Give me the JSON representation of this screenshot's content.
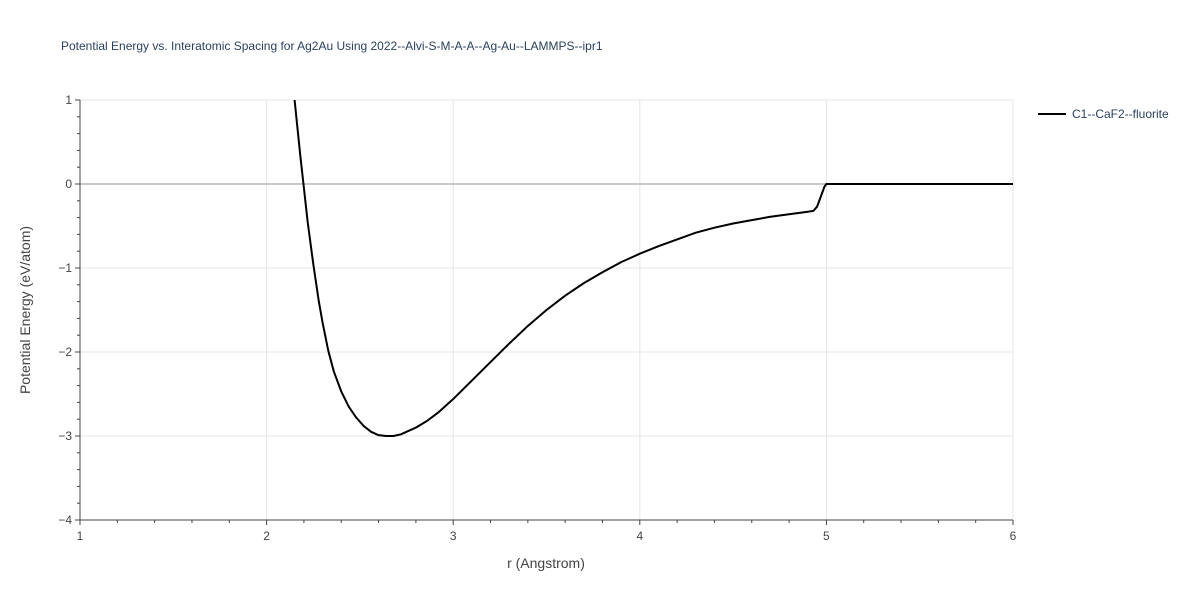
{
  "chart_data": {
    "type": "line",
    "title": "Potential Energy vs. Interatomic Spacing for Ag2Au Using 2022--Alvi-S-M-A-A--Ag-Au--LAMMPS--ipr1",
    "xlabel": "r (Angstrom)",
    "ylabel": "Potential Energy (eV/atom)",
    "xlim": [
      1,
      6
    ],
    "ylim": [
      -4,
      1
    ],
    "xticks": [
      1,
      2,
      3,
      4,
      5,
      6
    ],
    "xtick_labels": [
      "1",
      "2",
      "3",
      "4",
      "5",
      "6"
    ],
    "yticks": [
      -4,
      -3,
      -2,
      -1,
      0,
      1
    ],
    "ytick_labels": [
      "−4",
      "−3",
      "−2",
      "−1",
      "0",
      "1"
    ],
    "grid": true,
    "legend_position": "top-right",
    "series": [
      {
        "name": "C1--CaF2--fluorite",
        "color": "#000000",
        "x": [
          2.15,
          2.18,
          2.2,
          2.22,
          2.25,
          2.28,
          2.3,
          2.33,
          2.36,
          2.4,
          2.44,
          2.48,
          2.52,
          2.56,
          2.6,
          2.64,
          2.68,
          2.72,
          2.76,
          2.8,
          2.86,
          2.92,
          3.0,
          3.1,
          3.2,
          3.3,
          3.4,
          3.5,
          3.6,
          3.7,
          3.8,
          3.9,
          4.0,
          4.1,
          4.2,
          4.3,
          4.4,
          4.5,
          4.6,
          4.7,
          4.8,
          4.9,
          4.93,
          4.95,
          4.97,
          4.99,
          5.0,
          5.2,
          5.5,
          6.0
        ],
        "y": [
          1.0,
          0.35,
          -0.05,
          -0.45,
          -0.95,
          -1.4,
          -1.65,
          -1.98,
          -2.23,
          -2.47,
          -2.65,
          -2.78,
          -2.88,
          -2.95,
          -2.99,
          -3.0,
          -3.0,
          -2.98,
          -2.94,
          -2.9,
          -2.82,
          -2.72,
          -2.56,
          -2.34,
          -2.12,
          -1.9,
          -1.69,
          -1.5,
          -1.33,
          -1.18,
          -1.05,
          -0.93,
          -0.83,
          -0.74,
          -0.66,
          -0.58,
          -0.52,
          -0.47,
          -0.43,
          -0.39,
          -0.36,
          -0.33,
          -0.32,
          -0.27,
          -0.15,
          -0.03,
          0.0,
          0.0,
          0.0,
          0.0
        ]
      }
    ]
  }
}
